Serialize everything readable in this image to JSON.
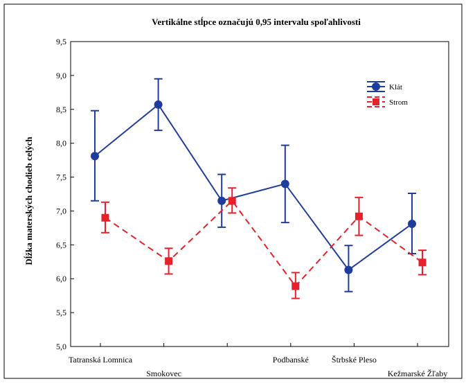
{
  "chart_data": {
    "type": "line",
    "title": "Vertikálne stĺpce označujú 0,95 intervalu spoľahlivosti",
    "y_label": "Dĺžka materských chodieb celých",
    "categories": [
      "Tatranská Lomnica",
      "Smokovec",
      null,
      "Podbanské",
      "Štrbské Pleso",
      "Kežmarské Žľaby"
    ],
    "series": [
      {
        "name": "Klát",
        "color": "#1f3c9c",
        "dashed": false,
        "marker": "circle",
        "values": [
          7.81,
          8.57,
          7.15,
          7.4,
          6.13,
          6.81
        ],
        "lower": [
          7.15,
          8.19,
          6.76,
          6.83,
          5.81,
          6.37
        ],
        "upper": [
          8.48,
          8.95,
          7.54,
          7.97,
          6.49,
          7.26
        ]
      },
      {
        "name": "Strom",
        "color": "#e8202a",
        "dashed": true,
        "marker": "square",
        "values": [
          6.9,
          6.26,
          7.15,
          5.89,
          6.92,
          6.24
        ],
        "lower": [
          6.68,
          6.07,
          6.97,
          5.71,
          6.64,
          6.06
        ],
        "upper": [
          7.13,
          6.45,
          7.34,
          6.09,
          7.2,
          6.42
        ]
      }
    ],
    "ylim": [
      5.0,
      9.5
    ],
    "yticks": [
      {
        "value": 5.0,
        "label": "5,0"
      },
      {
        "value": 5.5,
        "label": "5,5"
      },
      {
        "value": 6.0,
        "label": "6,0"
      },
      {
        "value": 6.5,
        "label": "6,5"
      },
      {
        "value": 7.0,
        "label": "7,0"
      },
      {
        "value": 7.5,
        "label": "7,5"
      },
      {
        "value": 8.0,
        "label": "8,0"
      },
      {
        "value": 8.5,
        "label": "8,5"
      },
      {
        "value": 9.0,
        "label": "9,0"
      },
      {
        "value": 9.5,
        "label": "9,5"
      }
    ],
    "legend": "upper right"
  }
}
